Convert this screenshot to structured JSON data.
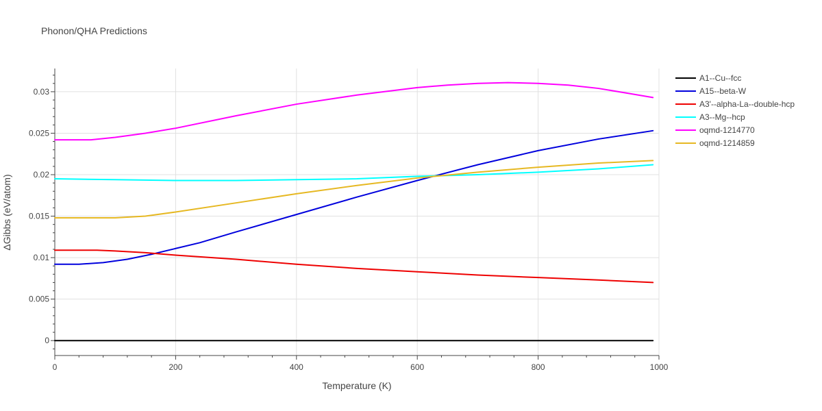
{
  "chart_data": {
    "type": "line",
    "title": "Phonon/QHA Predictions",
    "xlabel": "Temperature (K)",
    "ylabel": "ΔGibbs (eV/atom)",
    "xlim": [
      0,
      1000
    ],
    "ylim": [
      -0.0018,
      0.0328
    ],
    "x_ticks": [
      0,
      200,
      400,
      600,
      800,
      1000
    ],
    "y_ticks": [
      0,
      0.005,
      0.01,
      0.015,
      0.02,
      0.025,
      0.03
    ],
    "x_tick_labels": [
      "0",
      "200",
      "400",
      "600",
      "800",
      "1000"
    ],
    "y_tick_labels": [
      "0",
      "0.005",
      "0.01",
      "0.015",
      "0.02",
      "0.025",
      "0.03"
    ],
    "grid": true,
    "legend_position": "right",
    "series": [
      {
        "name": "A1--Cu--fcc",
        "color": "#000000",
        "x": [
          0,
          990
        ],
        "y": [
          0,
          0
        ]
      },
      {
        "name": "A15--beta-W",
        "color": "#0000dd",
        "x": [
          0,
          40,
          80,
          120,
          160,
          200,
          240,
          300,
          400,
          500,
          600,
          700,
          800,
          900,
          990
        ],
        "y": [
          0.0092,
          0.0092,
          0.0094,
          0.0098,
          0.0104,
          0.0111,
          0.0118,
          0.0131,
          0.0152,
          0.0173,
          0.0193,
          0.0212,
          0.0229,
          0.0243,
          0.0253
        ]
      },
      {
        "name": "A3'--alpha-La--double-hcp",
        "color": "#ee0000",
        "x": [
          0,
          70,
          100,
          150,
          200,
          300,
          400,
          500,
          600,
          700,
          800,
          900,
          990
        ],
        "y": [
          0.0109,
          0.0109,
          0.0108,
          0.0106,
          0.0103,
          0.0098,
          0.0092,
          0.0087,
          0.0083,
          0.0079,
          0.0076,
          0.0073,
          0.007
        ]
      },
      {
        "name": "A3--Mg--hcp",
        "color": "#00ffff",
        "x": [
          0,
          100,
          200,
          300,
          400,
          500,
          600,
          700,
          800,
          900,
          990
        ],
        "y": [
          0.0195,
          0.0194,
          0.0193,
          0.0193,
          0.0194,
          0.0195,
          0.0198,
          0.02,
          0.0203,
          0.0207,
          0.0212
        ]
      },
      {
        "name": "oqmd-1214770",
        "color": "#ff00ff",
        "x": [
          0,
          60,
          100,
          150,
          200,
          300,
          400,
          500,
          600,
          650,
          700,
          750,
          800,
          850,
          900,
          950,
          990
        ],
        "y": [
          0.0242,
          0.0242,
          0.0245,
          0.025,
          0.0256,
          0.0271,
          0.0285,
          0.0296,
          0.0305,
          0.0308,
          0.031,
          0.0311,
          0.031,
          0.0308,
          0.0304,
          0.0298,
          0.0293
        ]
      },
      {
        "name": "oqmd-1214859",
        "color": "#e6b822",
        "x": [
          0,
          100,
          150,
          200,
          300,
          400,
          500,
          600,
          700,
          800,
          900,
          990
        ],
        "y": [
          0.0148,
          0.0148,
          0.015,
          0.0155,
          0.0166,
          0.0177,
          0.0187,
          0.0196,
          0.0203,
          0.0209,
          0.0214,
          0.0217
        ]
      }
    ]
  }
}
